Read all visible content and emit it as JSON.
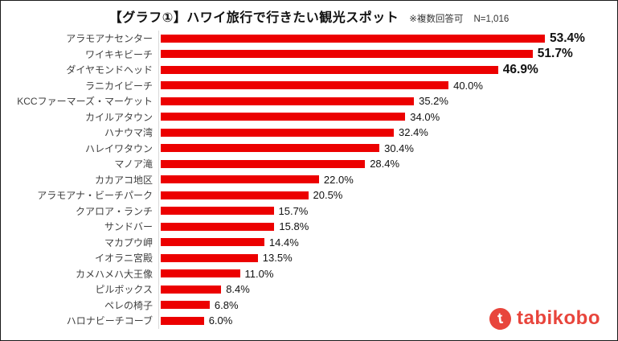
{
  "header": {
    "title": "【グラフ①】ハワイ旅行で行きたい観光スポット",
    "note": "※複数回答可",
    "sample_size": "N=1,016"
  },
  "logo": {
    "text": "tabikobo",
    "icon_glyph": "t",
    "color": "#e8453c"
  },
  "chart_data": {
    "type": "bar",
    "orientation": "horizontal",
    "title": "【グラフ①】ハワイ旅行で行きたい観光スポット",
    "note": "※複数回答可 N=1,016",
    "categories": [
      "アラモアナセンター",
      "ワイキキビーチ",
      "ダイヤモンドヘッド",
      "ラニカイビーチ",
      "KCCファーマーズ・マーケット",
      "カイルアタウン",
      "ハナウマ湾",
      "ハレイワタウン",
      "マノア滝",
      "カカアコ地区",
      "アラモアナ・ビーチパーク",
      "クアロア・ランチ",
      "サンドバー",
      "マカプウ岬",
      "イオラニ宮殿",
      "カメハメハ大王像",
      "ピルボックス",
      "ペレの椅子",
      "ハロナビーチコーブ"
    ],
    "values": [
      53.4,
      51.7,
      46.9,
      40.0,
      35.2,
      34.0,
      32.4,
      30.4,
      28.4,
      22.0,
      20.5,
      15.7,
      15.8,
      14.4,
      13.5,
      11.0,
      8.4,
      6.8,
      6.0
    ],
    "value_labels": [
      "53.4%",
      "51.7%",
      "46.9%",
      "40.0%",
      "35.2%",
      "34.0%",
      "32.4%",
      "30.4%",
      "28.4%",
      "22.0%",
      "20.5%",
      "15.7%",
      "15.8%",
      "14.4%",
      "13.5%",
      "11.0%",
      "8.4%",
      "6.8%",
      "6.0%"
    ],
    "emphasized_count": 3,
    "xlim": [
      0,
      60
    ],
    "bar_color": "#ec0000",
    "grid": false,
    "legend": false,
    "value_labels_position": "end-of-bar"
  }
}
